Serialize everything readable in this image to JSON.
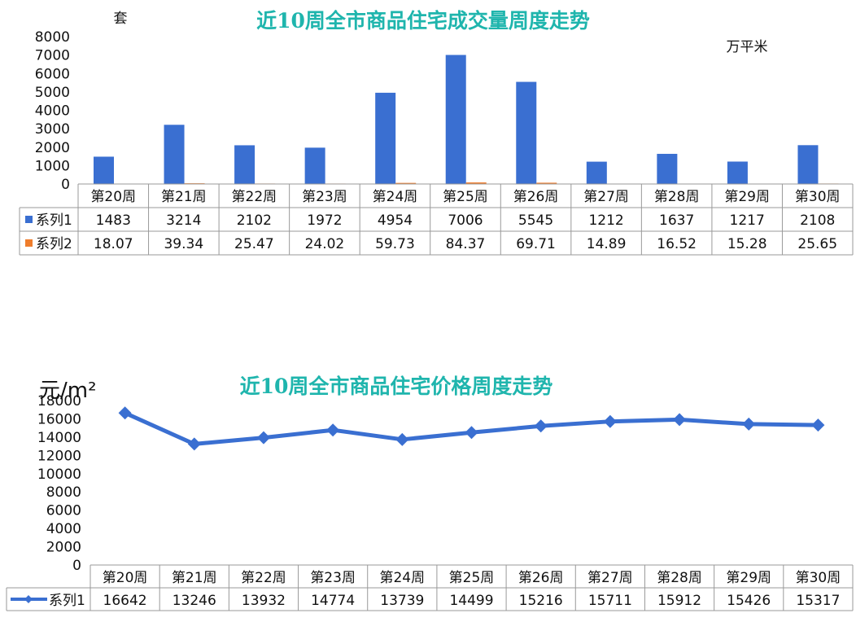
{
  "chart_data": [
    {
      "type": "bar",
      "title": "近10周全市商品住宅成交量周度走势",
      "left_unit": "套",
      "right_unit": "万平米",
      "categories": [
        "第20周",
        "第21周",
        "第22周",
        "第23周",
        "第24周",
        "第25周",
        "第26周",
        "第27周",
        "第28周",
        "第29周",
        "第30周"
      ],
      "series": [
        {
          "name": "系列1",
          "color": "#3a6fd1",
          "values": [
            1483,
            3214,
            2102,
            1972,
            4954,
            7006,
            5545,
            1212,
            1637,
            1217,
            2108
          ],
          "display": [
            "1483",
            "3214",
            "2102",
            "1972",
            "4954",
            "7006",
            "5545",
            "1212",
            "1637",
            "1217",
            "2108"
          ]
        },
        {
          "name": "系列2",
          "color": "#ef7d2c",
          "values": [
            18.07,
            39.34,
            25.47,
            24.02,
            59.73,
            84.37,
            69.71,
            14.89,
            16.52,
            15.28,
            25.65
          ],
          "display": [
            "18.07",
            "39.34",
            "25.47",
            "24.02",
            "59.73",
            "84.37",
            "69.71",
            "14.89",
            "16.52",
            "15.28",
            "25.65"
          ]
        }
      ],
      "yticks": [
        "0",
        "1000",
        "2000",
        "3000",
        "4000",
        "5000",
        "6000",
        "7000",
        "8000"
      ],
      "ylim": [
        0,
        8000
      ]
    },
    {
      "type": "line",
      "title": "近10周全市商品住宅价格周度走势",
      "unit": "元/m²",
      "categories": [
        "第20周",
        "第21周",
        "第22周",
        "第23周",
        "第24周",
        "第25周",
        "第26周",
        "第27周",
        "第28周",
        "第29周",
        "第30周"
      ],
      "series": [
        {
          "name": "系列1",
          "color": "#3a6fd1",
          "values": [
            16642,
            13246,
            13932,
            14774,
            13739,
            14499,
            15216,
            15711,
            15912,
            15426,
            15317
          ],
          "display": [
            "16642",
            "13246",
            "13932",
            "14774",
            "13739",
            "14499",
            "15216",
            "15711",
            "15912",
            "15426",
            "15317"
          ]
        }
      ],
      "yticks": [
        "0",
        "2000",
        "4000",
        "6000",
        "8000",
        "10000",
        "12000",
        "14000",
        "16000",
        "18000"
      ],
      "ylim": [
        0,
        18000
      ]
    }
  ]
}
